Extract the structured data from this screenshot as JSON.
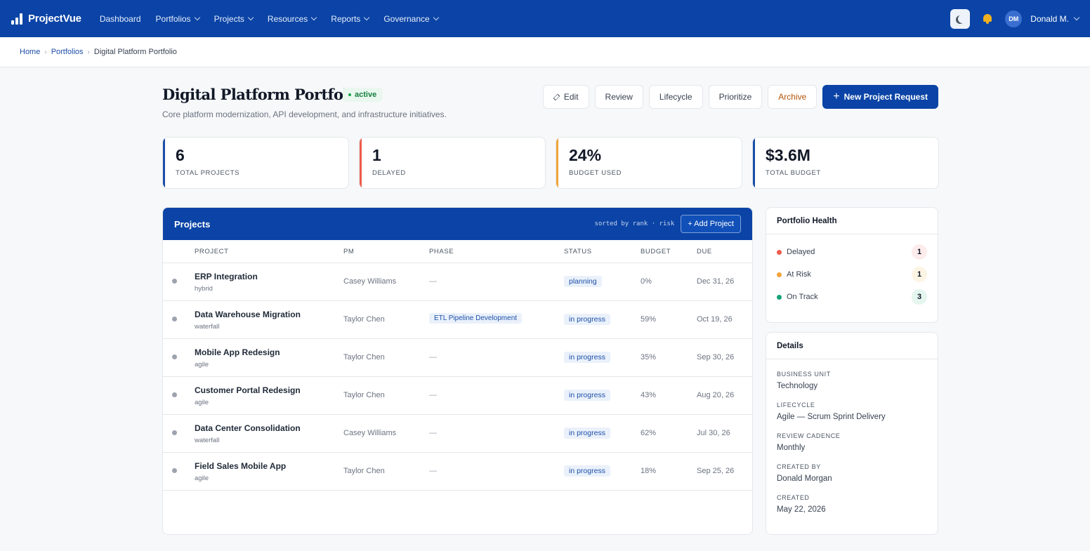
{
  "app": {
    "brand": "ProjectVue",
    "nav": [
      "Dashboard",
      "Portfolios",
      "Projects",
      "Resources",
      "Reports",
      "Governance"
    ],
    "user_initials": "DM",
    "user_name": "Donald M."
  },
  "breadcrumb": [
    "Home",
    "Portfolios",
    "Digital Platform Portfolio"
  ],
  "header": {
    "title": "Digital Platform Portfolio",
    "status": "active",
    "subtitle": "Core platform modernization, API development, and infrastructure initiatives.",
    "actions": [
      "Edit",
      "Review",
      "Lifecycle",
      "Prioritize",
      "Archive"
    ],
    "primary_action": "New Project Request"
  },
  "stats": [
    {
      "value": "6",
      "label": "TOTAL PROJECTS",
      "accent": "#1d4fa8"
    },
    {
      "value": "1",
      "label": "DELAYED",
      "accent": "#ef5b4b"
    },
    {
      "value": "24%",
      "label": "BUDGET USED",
      "accent": "#f2a43a"
    },
    {
      "value": "$3.6M",
      "label": "TOTAL BUDGET",
      "accent": "#1d4fa8"
    }
  ],
  "projects": {
    "title": "Projects",
    "sorted_by": "sorted by rank · risk",
    "add_label": "+ Add Project",
    "columns": [
      "PROJECT",
      "PM",
      "PHASE",
      "STATUS",
      "BUDGET",
      "DUE"
    ],
    "rows": [
      {
        "name": "ERP Integration",
        "method": "hybrid",
        "pm": "Casey Williams",
        "phase": "—",
        "status": "planning",
        "budget": "0%",
        "due": "Dec 31, 26"
      },
      {
        "name": "Data Warehouse Migration",
        "method": "waterfall",
        "pm": "Taylor Chen",
        "phase": "ETL Pipeline Development",
        "status": "in progress",
        "budget": "59%",
        "due": "Oct 19, 26"
      },
      {
        "name": "Mobile App Redesign",
        "method": "agile",
        "pm": "Taylor Chen",
        "phase": "—",
        "status": "in progress",
        "budget": "35%",
        "due": "Sep 30, 26"
      },
      {
        "name": "Customer Portal Redesign",
        "method": "agile",
        "pm": "Taylor Chen",
        "phase": "—",
        "status": "in progress",
        "budget": "43%",
        "due": "Aug 20, 26"
      },
      {
        "name": "Data Center Consolidation",
        "method": "waterfall",
        "pm": "Casey Williams",
        "phase": "—",
        "status": "in progress",
        "budget": "62%",
        "due": "Jul 30, 26"
      },
      {
        "name": "Field Sales Mobile App",
        "method": "agile",
        "pm": "Taylor Chen",
        "phase": "—",
        "status": "in progress",
        "budget": "18%",
        "due": "Sep 25, 26"
      }
    ]
  },
  "health": {
    "title": "Portfolio Health",
    "items": [
      {
        "label": "Delayed",
        "count": "1",
        "color": "#ef5b4b",
        "bg": "#fdecec"
      },
      {
        "label": "At Risk",
        "count": "1",
        "color": "#f2a43a",
        "bg": "#fdf5e4"
      },
      {
        "label": "On Track",
        "count": "3",
        "color": "#16a37a",
        "bg": "#e4f6ee"
      }
    ]
  },
  "details": {
    "title": "Details",
    "fields": [
      {
        "label": "BUSINESS UNIT",
        "value": "Technology"
      },
      {
        "label": "LIFECYCLE",
        "value": "Agile — Scrum Sprint Delivery"
      },
      {
        "label": "REVIEW CADENCE",
        "value": "Monthly"
      },
      {
        "label": "CREATED BY",
        "value": "Donald Morgan"
      },
      {
        "label": "CREATED",
        "value": "May 22, 2026"
      }
    ]
  }
}
